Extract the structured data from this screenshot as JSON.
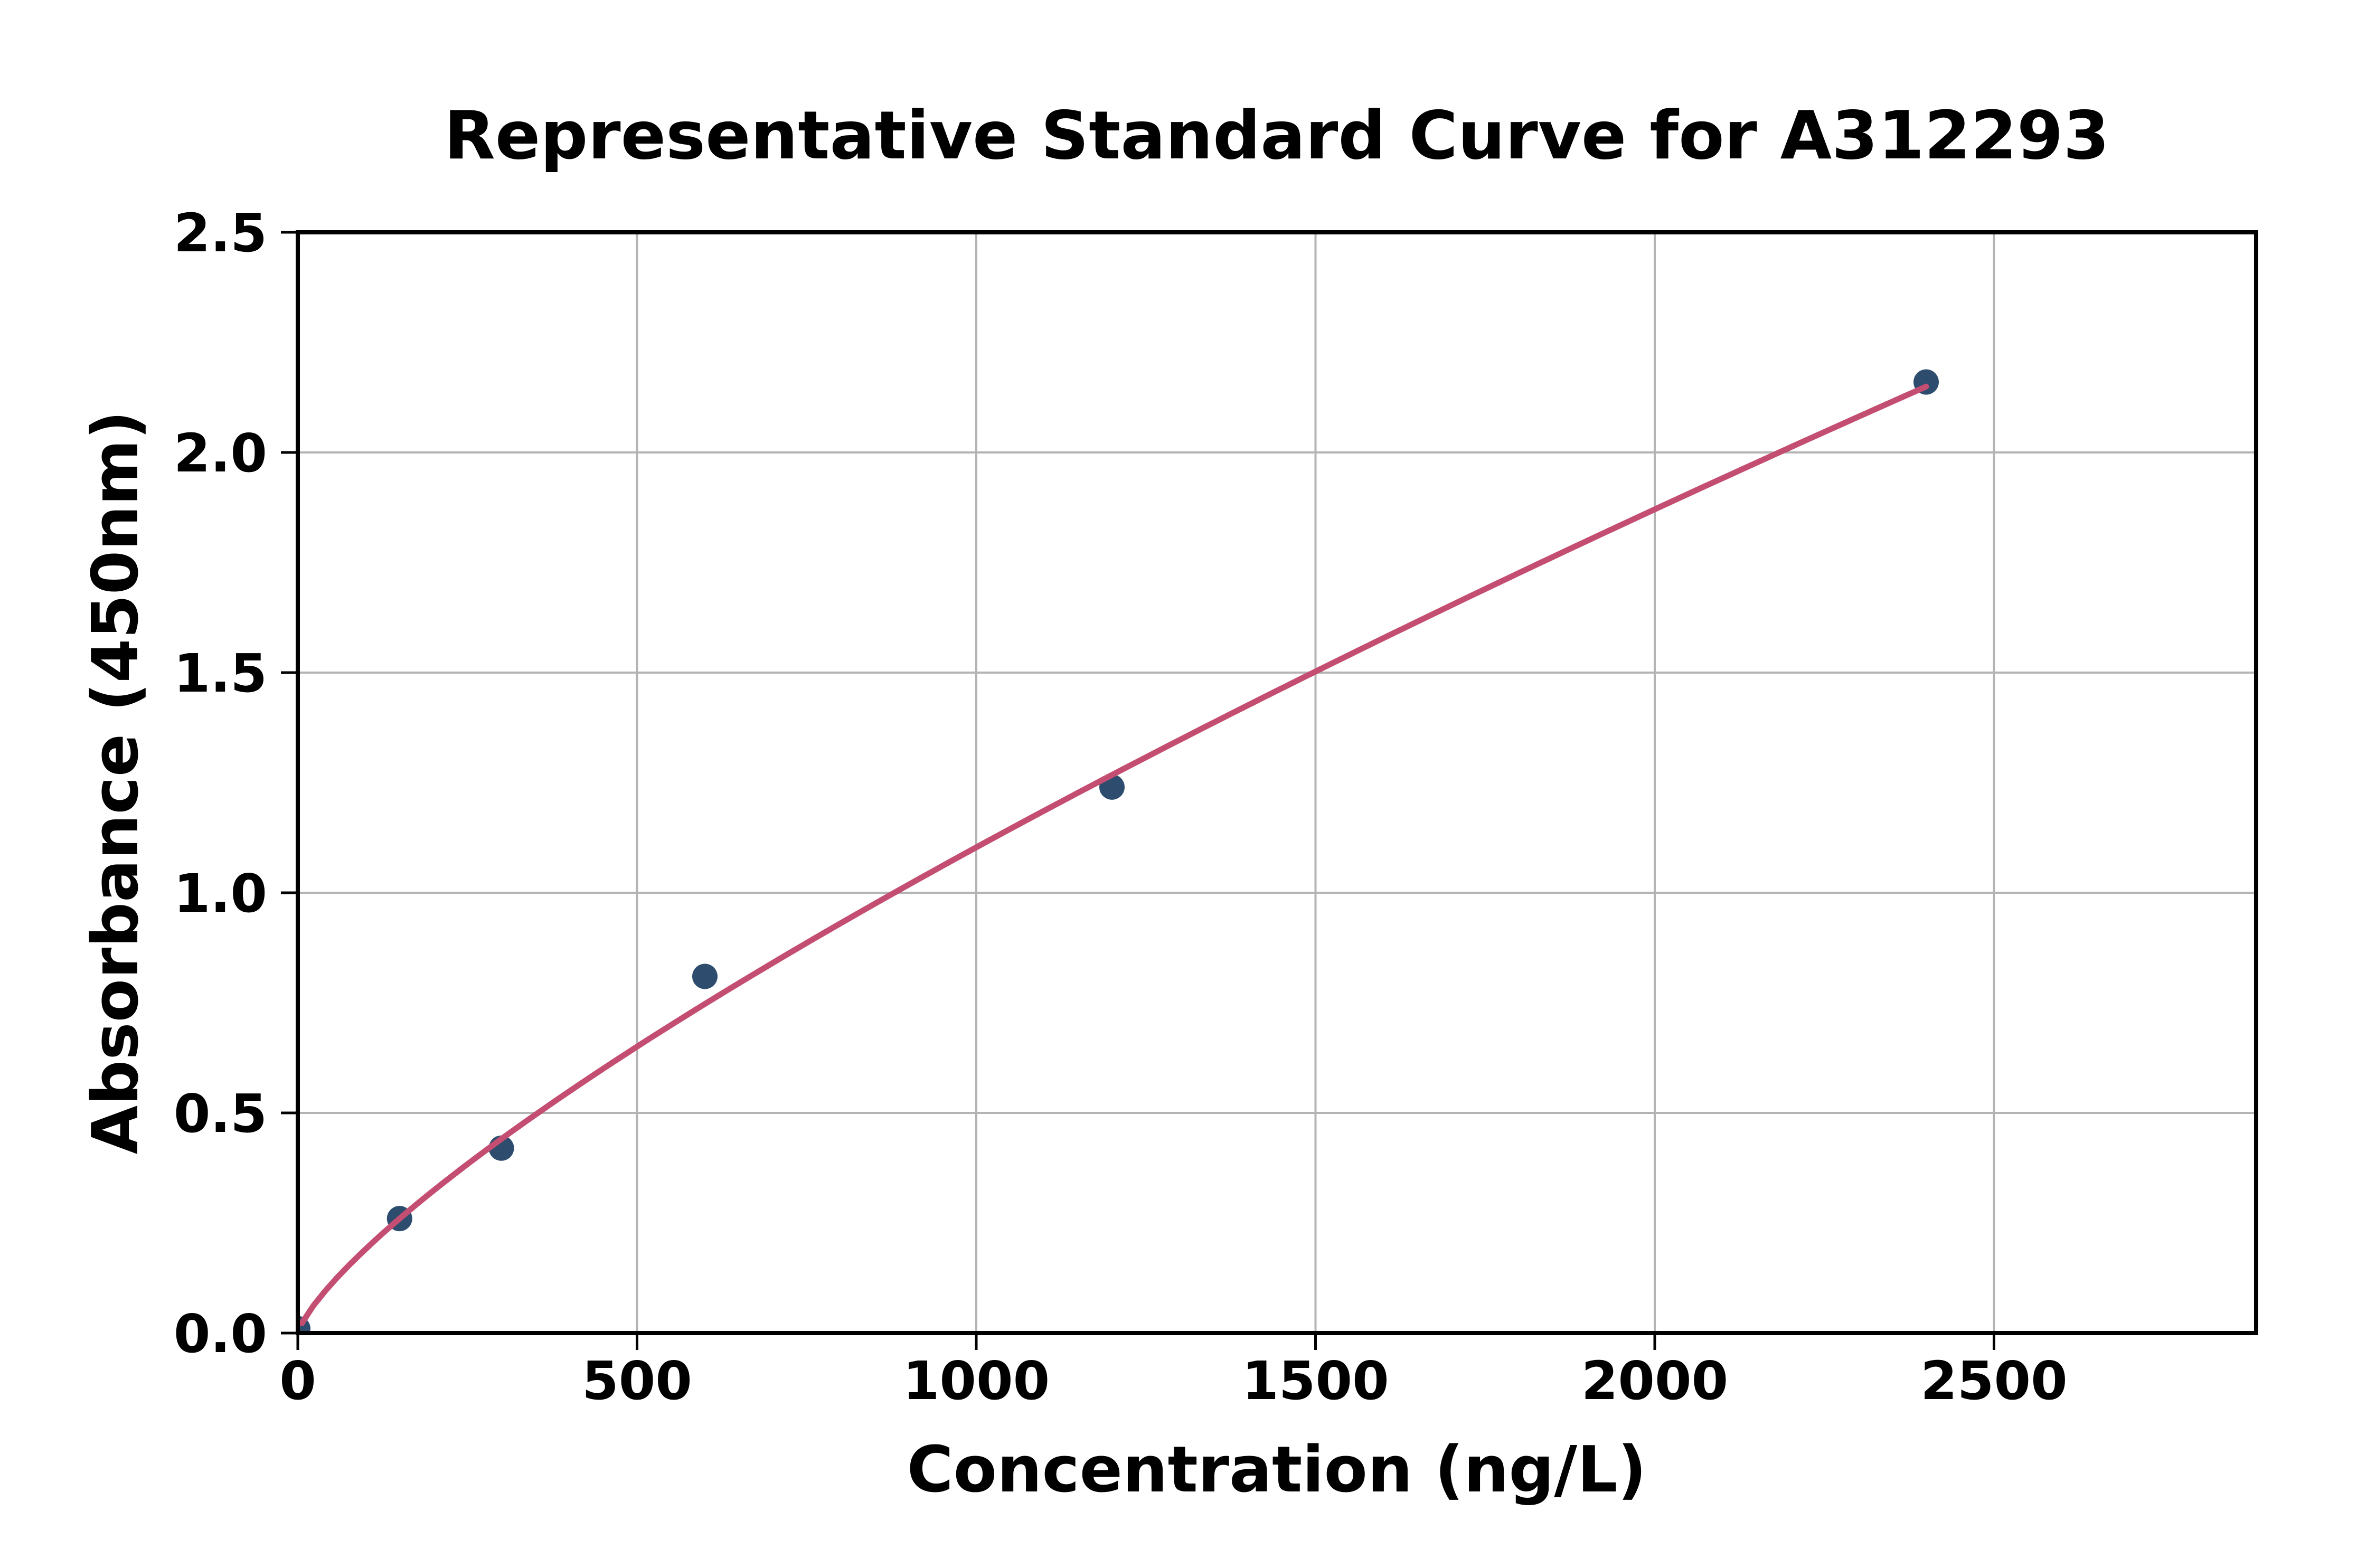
{
  "chart_data": {
    "type": "scatter",
    "title": "Representative Standard Curve for A312293",
    "xlabel": "Concentration (ng/L)",
    "ylabel": "Absorbance (450nm)",
    "xlim": [
      0,
      2886
    ],
    "ylim": [
      0,
      2.5
    ],
    "grid": true,
    "legend": "none",
    "x_ticks": [
      {
        "value": 0,
        "label": "0"
      },
      {
        "value": 500,
        "label": "500"
      },
      {
        "value": 1000,
        "label": "1000"
      },
      {
        "value": 1500,
        "label": "1500"
      },
      {
        "value": 2000,
        "label": "2000"
      },
      {
        "value": 2500,
        "label": "2500"
      }
    ],
    "y_ticks": [
      {
        "value": 0,
        "label": "0.0"
      },
      {
        "value": 0.5,
        "label": "0.5"
      },
      {
        "value": 1,
        "label": "1.0"
      },
      {
        "value": 1.5,
        "label": "1.5"
      },
      {
        "value": 2,
        "label": "2.0"
      },
      {
        "value": 2.5,
        "label": "2.5"
      }
    ],
    "points": [
      {
        "x": 0,
        "y": 0.01
      },
      {
        "x": 150,
        "y": 0.26
      },
      {
        "x": 300,
        "y": 0.42
      },
      {
        "x": 600,
        "y": 0.81
      },
      {
        "x": 1200,
        "y": 1.24
      },
      {
        "x": 2400,
        "y": 2.16
      }
    ],
    "curve_fit": {
      "type": "power",
      "equation": "y = a·x^b",
      "a": 0.00571,
      "b": 0.762,
      "x_start": 6,
      "x_end": 2400
    },
    "colors": {
      "points": "#2E4D6E",
      "curve": "#C44E72",
      "grid": "#B4B4B4",
      "axis": "#000000",
      "text": "#000000",
      "background": "#FFFFFF"
    },
    "marker_radius_px": 24
  }
}
